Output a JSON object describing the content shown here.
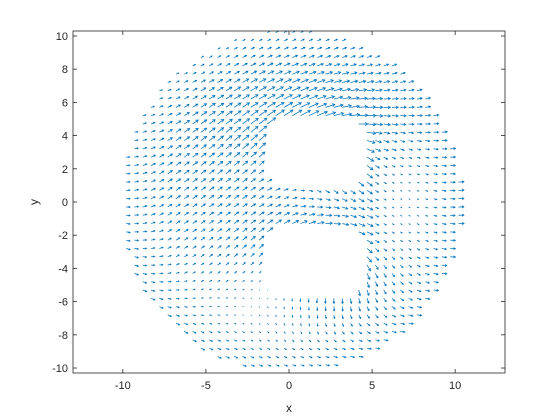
{
  "figure": {
    "background": "#ffffff"
  },
  "chart_data": {
    "type": "quiver",
    "title": "",
    "xlabel": "x",
    "ylabel": "y",
    "xlim": [
      -13,
      13
    ],
    "ylim": [
      -10.3,
      10.3
    ],
    "xticks": [
      -10,
      -5,
      0,
      5,
      10
    ],
    "yticks": [
      -10,
      -8,
      -6,
      -4,
      -2,
      0,
      2,
      4,
      6,
      8,
      10
    ],
    "xtick_labels": [
      "-10",
      "-5",
      "0",
      "5",
      "10"
    ],
    "ytick_labels": [
      "-10",
      "-8",
      "-6",
      "-4",
      "-2",
      "0",
      "2",
      "4",
      "6",
      "8",
      "10"
    ],
    "grid": false,
    "box": true,
    "series": [
      {
        "color": "#0072bd",
        "domain": {
          "shape": "disk",
          "center": [
            0,
            0
          ],
          "radius": 10.3
        },
        "grid_step": {
          "x": 0.5,
          "y": 0.5
        },
        "holes": [
          {
            "xmin": -1.5,
            "xmax": 4.5,
            "ymin": 1.0,
            "ymax": 5.0,
            "corner_radius": 1.2
          },
          {
            "xmin": -1.5,
            "xmax": 4.5,
            "ymin": -5.5,
            "ymax": -1.5,
            "corner_radius": 1.2
          }
        ]
      }
    ]
  }
}
